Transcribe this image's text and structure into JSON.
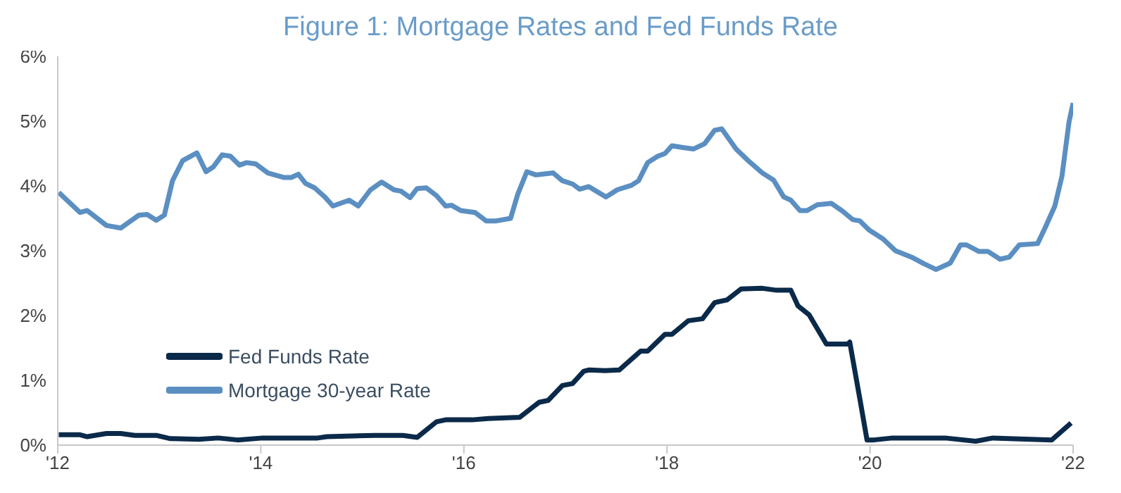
{
  "chart_data": {
    "type": "line",
    "title": "Figure 1: Mortgage Rates and Fed Funds Rate",
    "xlim": [
      2012,
      2022
    ],
    "xticks": [
      {
        "value": 2012,
        "label": "'12"
      },
      {
        "value": 2014,
        "label": "'14"
      },
      {
        "value": 2016,
        "label": "'16"
      },
      {
        "value": 2018,
        "label": "'18"
      },
      {
        "value": 2020,
        "label": "'20"
      },
      {
        "value": 2022,
        "label": "'22"
      }
    ],
    "ylim": [
      0,
      6
    ],
    "yticks": [
      {
        "value": 0,
        "label": "0%"
      },
      {
        "value": 1,
        "label": "1%"
      },
      {
        "value": 2,
        "label": "2%"
      },
      {
        "value": 3,
        "label": "3%"
      },
      {
        "value": 4,
        "label": "4%"
      },
      {
        "value": 5,
        "label": "5%"
      },
      {
        "value": 6,
        "label": "6%"
      }
    ],
    "grid": false,
    "legend": "center left",
    "marker": "none",
    "line_style": "solid",
    "series": [
      {
        "name": "Fed Funds Rate",
        "color": "#0b2a4a",
        "x": [
          2012.01,
          2012.22,
          2012.29,
          2012.48,
          2012.62,
          2012.76,
          2012.97,
          2013.11,
          2013.39,
          2013.58,
          2013.77,
          2014.02,
          2014.56,
          2014.65,
          2015.12,
          2015.4,
          2015.54,
          2015.73,
          2015.82,
          2016.08,
          2016.24,
          2016.55,
          2016.74,
          2016.83,
          2016.97,
          2017.07,
          2017.18,
          2017.23,
          2017.39,
          2017.53,
          2017.74,
          2017.81,
          2017.98,
          2018.05,
          2018.21,
          2018.35,
          2018.47,
          2018.59,
          2018.73,
          2018.94,
          2019.08,
          2019.22,
          2019.29,
          2019.4,
          2019.57,
          2019.78,
          2019.8,
          2019.9,
          2019.97,
          2020.04,
          2020.22,
          2020.74,
          2021.04,
          2021.21,
          2021.79,
          2021.98
        ],
        "values": [
          0.16,
          0.16,
          0.13,
          0.18,
          0.18,
          0.15,
          0.15,
          0.1,
          0.09,
          0.11,
          0.08,
          0.11,
          0.11,
          0.13,
          0.15,
          0.15,
          0.12,
          0.36,
          0.39,
          0.39,
          0.41,
          0.43,
          0.66,
          0.69,
          0.92,
          0.95,
          1.14,
          1.16,
          1.15,
          1.16,
          1.45,
          1.45,
          1.71,
          1.71,
          1.92,
          1.95,
          2.2,
          2.24,
          2.41,
          2.42,
          2.39,
          2.39,
          2.15,
          2.01,
          1.56,
          1.56,
          1.59,
          0.71,
          0.08,
          0.08,
          0.11,
          0.11,
          0.06,
          0.11,
          0.08,
          0.34
        ]
      },
      {
        "name": "Mortgage 30-year Rate",
        "color": "#5b8fc2",
        "x": [
          2012.01,
          2012.22,
          2012.29,
          2012.48,
          2012.62,
          2012.8,
          2012.88,
          2012.97,
          2013.05,
          2013.13,
          2013.23,
          2013.37,
          2013.46,
          2013.53,
          2013.62,
          2013.7,
          2013.79,
          2013.86,
          2013.95,
          2014.07,
          2014.23,
          2014.3,
          2014.37,
          2014.44,
          2014.53,
          2014.63,
          2014.71,
          2014.87,
          2014.96,
          2015.08,
          2015.19,
          2015.31,
          2015.38,
          2015.47,
          2015.54,
          2015.63,
          2015.73,
          2015.82,
          2015.88,
          2015.97,
          2016.11,
          2016.22,
          2016.32,
          2016.46,
          2016.53,
          2016.62,
          2016.71,
          2016.88,
          2016.97,
          2017.07,
          2017.14,
          2017.23,
          2017.4,
          2017.51,
          2017.65,
          2017.72,
          2017.81,
          2017.91,
          2017.98,
          2018.05,
          2018.17,
          2018.26,
          2018.37,
          2018.47,
          2018.54,
          2018.68,
          2018.8,
          2018.94,
          2019.05,
          2019.15,
          2019.22,
          2019.31,
          2019.38,
          2019.48,
          2019.62,
          2019.73,
          2019.83,
          2019.9,
          2019.99,
          2020.13,
          2020.25,
          2020.41,
          2020.53,
          2020.65,
          2020.79,
          2020.89,
          2020.95,
          2021.07,
          2021.16,
          2021.28,
          2021.37,
          2021.47,
          2021.65,
          2021.72,
          2021.82,
          2021.89,
          2021.96,
          2022.0
        ],
        "values": [
          3.9,
          3.59,
          3.62,
          3.39,
          3.35,
          3.55,
          3.56,
          3.47,
          3.55,
          4.08,
          4.39,
          4.51,
          4.22,
          4.29,
          4.48,
          4.46,
          4.32,
          4.36,
          4.34,
          4.2,
          4.13,
          4.13,
          4.18,
          4.04,
          3.97,
          3.83,
          3.69,
          3.78,
          3.69,
          3.94,
          4.06,
          3.94,
          3.92,
          3.82,
          3.96,
          3.97,
          3.85,
          3.69,
          3.7,
          3.62,
          3.59,
          3.46,
          3.46,
          3.5,
          3.87,
          4.22,
          4.17,
          4.2,
          4.08,
          4.03,
          3.95,
          3.99,
          3.83,
          3.94,
          4.01,
          4.08,
          4.36,
          4.46,
          4.5,
          4.62,
          4.59,
          4.57,
          4.65,
          4.86,
          4.88,
          4.57,
          4.39,
          4.2,
          4.09,
          3.83,
          3.78,
          3.62,
          3.62,
          3.71,
          3.73,
          3.61,
          3.48,
          3.46,
          3.32,
          3.18,
          3.0,
          2.9,
          2.8,
          2.71,
          2.81,
          3.09,
          3.09,
          2.99,
          2.99,
          2.87,
          2.9,
          3.09,
          3.11,
          3.34,
          3.69,
          4.15,
          4.99,
          5.28
        ]
      }
    ]
  }
}
